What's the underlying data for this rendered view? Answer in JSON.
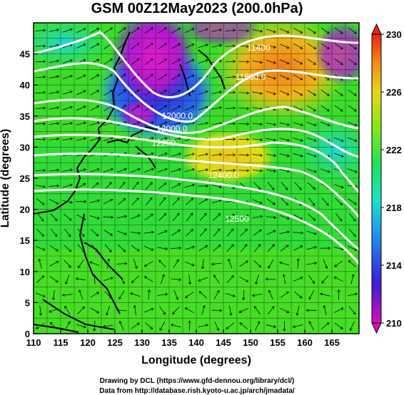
{
  "title": "GSM 00Z12May2023 (200.0hPa)",
  "x_axis": {
    "label": "Longitude (degrees)",
    "range": [
      110,
      170
    ],
    "ticks": [
      110,
      115,
      120,
      125,
      130,
      135,
      140,
      145,
      150,
      155,
      160,
      165
    ]
  },
  "y_axis": {
    "label": "Latitude  (degrees)",
    "range": [
      0,
      50
    ],
    "ticks": [
      0,
      5,
      10,
      15,
      20,
      25,
      30,
      35,
      40,
      45
    ]
  },
  "colorbar": {
    "range": [
      210,
      230
    ],
    "ticks": [
      210,
      214,
      218,
      222,
      226,
      230
    ],
    "stops": [
      "#d60fb4",
      "#2a1fd6",
      "#1fb8f0",
      "#22e07a",
      "#2ee01a",
      "#c9e61a",
      "#f5a31a",
      "#e8351a"
    ]
  },
  "contours": {
    "color": "#ffffff",
    "labels": [
      {
        "text": "12000.0",
        "lon": 136.5,
        "lat": 34.6
      },
      {
        "text": "12000.0",
        "lon": 135.5,
        "lat": 32.5
      },
      {
        "text": "12200",
        "lon": 134.0,
        "lat": 30.2
      },
      {
        "text": "12400.0",
        "lon": 145.0,
        "lat": 25.0
      },
      {
        "text": "12500",
        "lon": 147.5,
        "lat": 18.0
      },
      {
        "text": "11600.0",
        "lon": 150.0,
        "lat": 40.8
      },
      {
        "text": "11400",
        "lon": 151.5,
        "lat": 45.5
      }
    ]
  },
  "credits": [
    "Drawing by DCL (https://www.gfd-dennou.org/library/dcl/)",
    "Data from http://database.rish.kyoto-u.ac.jp/arch/jmadata/"
  ]
}
